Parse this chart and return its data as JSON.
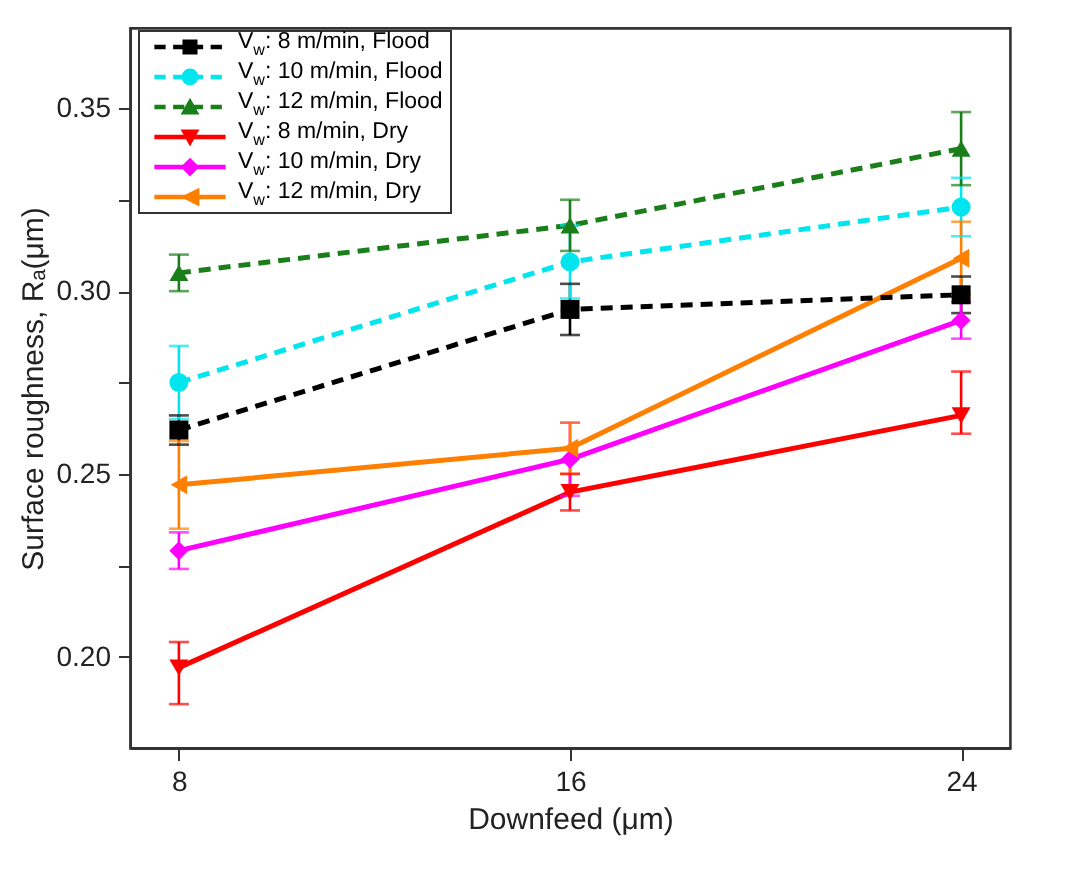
{
  "chart_data": {
    "type": "line",
    "xlabel": "Downfeed (μm)",
    "ylabel": "Surface roughness, Rₐ(μm)",
    "x": [
      8,
      16,
      24
    ],
    "xlim": [
      7,
      25
    ],
    "xticks": [
      8,
      16,
      24
    ],
    "ylim": [
      0.175,
      0.372
    ],
    "yticks": [
      {
        "value": 0.2,
        "label": "0.20"
      },
      {
        "value": 0.225,
        "label": null
      },
      {
        "value": 0.25,
        "label": "0.25"
      },
      {
        "value": 0.275,
        "label": null
      },
      {
        "value": 0.3,
        "label": "0.30"
      },
      {
        "value": 0.325,
        "label": null
      },
      {
        "value": 0.35,
        "label": "0.35"
      }
    ],
    "legend": "top left",
    "grid": false,
    "series": [
      {
        "name": "V$_{w}$: 8 m/min, Flood",
        "color": "#000000",
        "marker": "square",
        "line_style": "dashed",
        "values": [
          0.262,
          0.295,
          0.299
        ],
        "errors": [
          0.004,
          0.007,
          0.005
        ]
      },
      {
        "name": "V$_{w}$: 10 m/min, Flood",
        "color": "#00e5ee",
        "marker": "circle",
        "line_style": "dashed",
        "values": [
          0.275,
          0.308,
          0.323
        ],
        "errors": [
          0.01,
          0.01,
          0.008
        ]
      },
      {
        "name": "V$_{w}$: 12 m/min, Flood",
        "color": "#1a7f1a",
        "marker": "triangle",
        "line_style": "dashed",
        "values": [
          0.305,
          0.318,
          0.339
        ],
        "errors": [
          0.005,
          0.007,
          0.01
        ]
      },
      {
        "name": "V$_{w}$: 8 m/min, Dry",
        "color": "#ff0000",
        "marker": "triangle-down",
        "line_style": "solid",
        "values": [
          0.197,
          0.245,
          0.266
        ],
        "errors": [
          [
            0.187,
            0.204
          ],
          0.005,
          [
            0.261,
            0.278
          ]
        ]
      },
      {
        "name": "V$_{w}$: 10 m/min, Dry",
        "color": "#ff00ff",
        "marker": "diamond",
        "line_style": "solid",
        "values": [
          0.229,
          0.254,
          0.292
        ],
        "errors": [
          0.005,
          0.01,
          0.005
        ]
      },
      {
        "name": "V$_{w}$: 12 m/min, Dry",
        "color": "#ff8000",
        "marker": "triangle-left",
        "line_style": "solid",
        "values": [
          0.247,
          0.257,
          0.309
        ],
        "errors": [
          0.012,
          0.007,
          0.01
        ]
      }
    ]
  }
}
